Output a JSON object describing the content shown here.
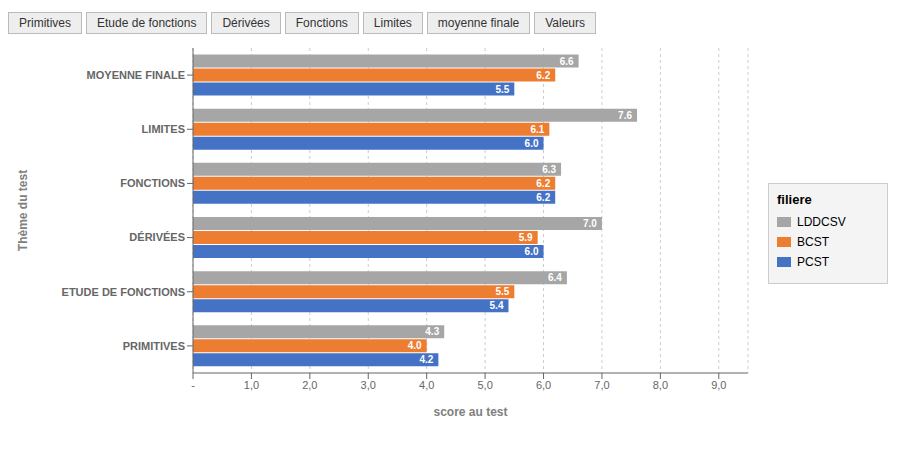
{
  "chart_data": {
    "type": "bar",
    "orientation": "horizontal",
    "categories": [
      "PRIMITIVES",
      "ETUDE DE FONCTIONS",
      "DÉRIVÉES",
      "FONCTIONS",
      "LIMITES",
      "MOYENNE FINALE"
    ],
    "series": [
      {
        "name": "LDDCSV",
        "color": "#a6a6a6",
        "values": [
          4.3,
          6.4,
          7.0,
          6.3,
          7.6,
          6.6
        ],
        "value_labels": [
          "4.3",
          "6.4",
          "7.0",
          "6.3",
          "7.6",
          "6.6"
        ]
      },
      {
        "name": "BCST",
        "color": "#ed7d31",
        "values": [
          4.0,
          5.5,
          5.9,
          6.2,
          6.1,
          6.2
        ],
        "value_labels": [
          "4.0",
          "5.5",
          "5.9",
          "6.2",
          "6.1",
          "6.2"
        ]
      },
      {
        "name": "PCST",
        "color": "#4472c4",
        "values": [
          4.2,
          5.4,
          6.0,
          6.2,
          6.0,
          5.5
        ],
        "value_labels": [
          "4.2",
          "5.4",
          "6.0",
          "6.2",
          "6.0",
          "5.5"
        ]
      }
    ],
    "x_label": "score au test",
    "y_label": "Thème du test",
    "xlim": [
      0,
      9.5
    ],
    "xticks": [
      {
        "value": 0,
        "label": "-"
      },
      {
        "value": 1.0,
        "label": "1,0"
      },
      {
        "value": 2.0,
        "label": "2,0"
      },
      {
        "value": 3.0,
        "label": "3,0"
      },
      {
        "value": 4.0,
        "label": "4,0"
      },
      {
        "value": 5.0,
        "label": "5,0"
      },
      {
        "value": 6.0,
        "label": "6,0"
      },
      {
        "value": 7.0,
        "label": "7,0"
      },
      {
        "value": 8.0,
        "label": "8,0"
      },
      {
        "value": 9.0,
        "label": "9,0"
      }
    ],
    "grid": true,
    "data_labels": true,
    "legend": "right",
    "legend_title": "filiere",
    "annotations": [
      "Primitives",
      "Etude de fonctions",
      "Dérivées",
      "Fonctions",
      "Limites",
      "moyenne finale",
      "Valeurs"
    ]
  }
}
